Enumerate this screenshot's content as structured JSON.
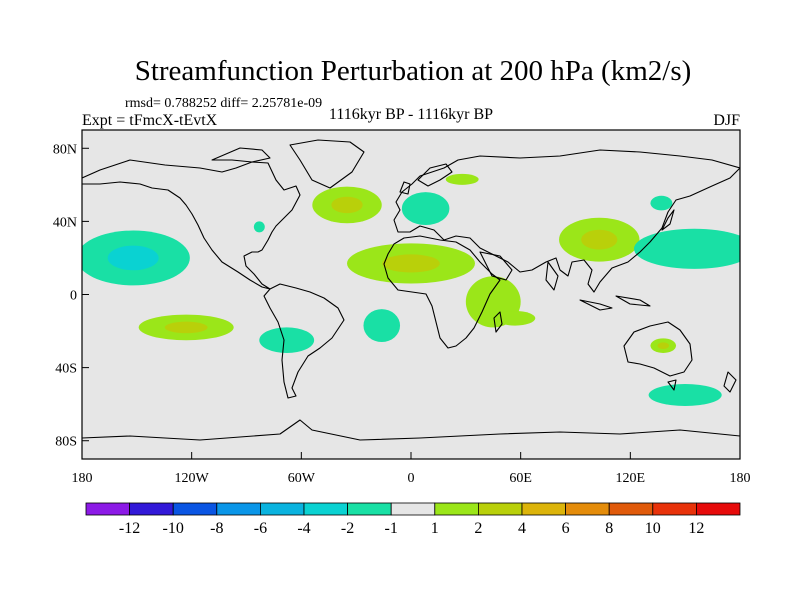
{
  "chart_data": {
    "type": "heatmap",
    "title": "Streamfunction Perturbation at 200 hPa (km2/s)",
    "stats_text": "rmsd= 0.788252 diff= 2.25781e-09",
    "subtitle_left": "Expt = tFmcX-tEvtX",
    "subtitle_center": "1116kyr BP - 1116kyr BP",
    "subtitle_right": "DJF",
    "map": "world-coastlines",
    "x_range": [
      -180,
      180
    ],
    "y_range": [
      -90,
      90
    ],
    "x_ticks": [
      {
        "value": -180,
        "label": "180"
      },
      {
        "value": -120,
        "label": "120W"
      },
      {
        "value": -60,
        "label": "60W"
      },
      {
        "value": 0,
        "label": "0"
      },
      {
        "value": 60,
        "label": "60E"
      },
      {
        "value": 120,
        "label": "120E"
      },
      {
        "value": 180,
        "label": "180"
      }
    ],
    "y_ticks": [
      {
        "value": 80,
        "label": "80N"
      },
      {
        "value": 40,
        "label": "40N"
      },
      {
        "value": 0,
        "label": "0"
      },
      {
        "value": -40,
        "label": "40S"
      },
      {
        "value": -80,
        "label": "80S"
      }
    ],
    "colorbar": {
      "colors": [
        "#8c1ae6",
        "#3219d8",
        "#0a55e3",
        "#0a96e8",
        "#0ab3df",
        "#0ad2d2",
        "#19e0a5",
        "#e6e6e6",
        "#9be619",
        "#b9d00a",
        "#dcb40a",
        "#e48c0a",
        "#e05a0a",
        "#e8320a",
        "#e60a0a"
      ],
      "labels": [
        "-12",
        "-10",
        "-8",
        "-6",
        "-4",
        "-2",
        "-1",
        "1",
        "2",
        "4",
        "6",
        "8",
        "10",
        "12"
      ]
    },
    "anomalies": [
      {
        "lon": -152,
        "lat": 20,
        "rx": 31,
        "ry": 15,
        "levels": [
          "#19e0a5",
          "#0ad2d2"
        ]
      },
      {
        "lon": -123,
        "lat": -18,
        "rx": 26,
        "ry": 7,
        "levels": [
          "#9be619",
          "#b9d00a"
        ]
      },
      {
        "lon": -68,
        "lat": -25,
        "rx": 15,
        "ry": 7,
        "levels": [
          "#19e0a5"
        ]
      },
      {
        "lon": -83,
        "lat": 37,
        "rx": 3,
        "ry": 3,
        "levels": [
          "#19e0a5"
        ]
      },
      {
        "lon": -35,
        "lat": 49,
        "rx": 19,
        "ry": 10,
        "levels": [
          "#9be619",
          "#b9d00a"
        ]
      },
      {
        "lon": -16,
        "lat": -17,
        "rx": 10,
        "ry": 9,
        "levels": [
          "#19e0a5"
        ]
      },
      {
        "lon": 8,
        "lat": 47,
        "rx": 13,
        "ry": 9,
        "levels": [
          "#19e0a5"
        ]
      },
      {
        "lon": 0,
        "lat": 17,
        "rx": 35,
        "ry": 11,
        "levels": [
          "#9be619",
          "#b9d00a"
        ]
      },
      {
        "lon": 45,
        "lat": -4,
        "rx": 15,
        "ry": 14,
        "levels": [
          "#9be619"
        ]
      },
      {
        "lon": 57,
        "lat": -13,
        "rx": 11,
        "ry": 4,
        "levels": [
          "#9be619"
        ]
      },
      {
        "lon": 28,
        "lat": 63,
        "rx": 9,
        "ry": 3,
        "levels": [
          "#9be619"
        ]
      },
      {
        "lon": 103,
        "lat": 30,
        "rx": 22,
        "ry": 12,
        "levels": [
          "#9be619",
          "#b9d00a"
        ]
      },
      {
        "lon": 155,
        "lat": 25,
        "rx": 33,
        "ry": 11,
        "levels": [
          "#19e0a5"
        ]
      },
      {
        "lon": 137,
        "lat": 50,
        "rx": 6,
        "ry": 4,
        "levels": [
          "#19e0a5"
        ]
      },
      {
        "lon": 138,
        "lat": -28,
        "rx": 7,
        "ry": 4,
        "levels": [
          "#9be619",
          "#b9d00a"
        ]
      },
      {
        "lon": 150,
        "lat": -55,
        "rx": 20,
        "ry": 6,
        "levels": [
          "#19e0a5"
        ]
      }
    ]
  }
}
